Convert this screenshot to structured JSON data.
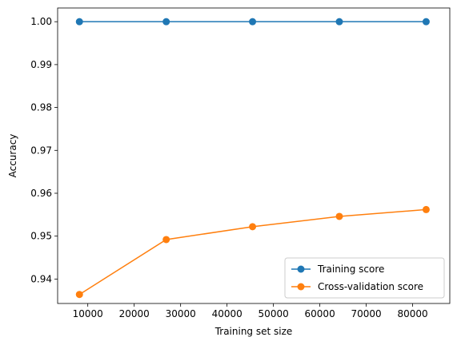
{
  "chart_data": {
    "type": "line",
    "xlabel": "Training set size",
    "ylabel": "Accuracy",
    "xlim": [
      3500,
      88000
    ],
    "ylim": [
      0.9343,
      1.0032
    ],
    "xticks": [
      10000,
      20000,
      30000,
      40000,
      50000,
      60000,
      70000,
      80000
    ],
    "xtick_labels": [
      "10000",
      "20000",
      "30000",
      "40000",
      "50000",
      "60000",
      "70000",
      "80000"
    ],
    "yticks": [
      0.94,
      0.95,
      0.96,
      0.97,
      0.98,
      0.99,
      1.0
    ],
    "ytick_labels": [
      "0.94",
      "0.95",
      "0.96",
      "0.97",
      "0.98",
      "0.99",
      "1.00"
    ],
    "grid": false,
    "legend_position": "lower-right",
    "x": [
      8200,
      26900,
      45500,
      64200,
      82900
    ],
    "series": [
      {
        "name": "Training score",
        "color": "#1f77b4",
        "marker": "circle",
        "values": [
          1.0,
          1.0,
          1.0,
          1.0,
          1.0
        ]
      },
      {
        "name": "Cross-validation score",
        "color": "#ff7f0e",
        "marker": "circle",
        "values": [
          0.9364,
          0.9492,
          0.9522,
          0.9546,
          0.9562
        ]
      }
    ]
  }
}
